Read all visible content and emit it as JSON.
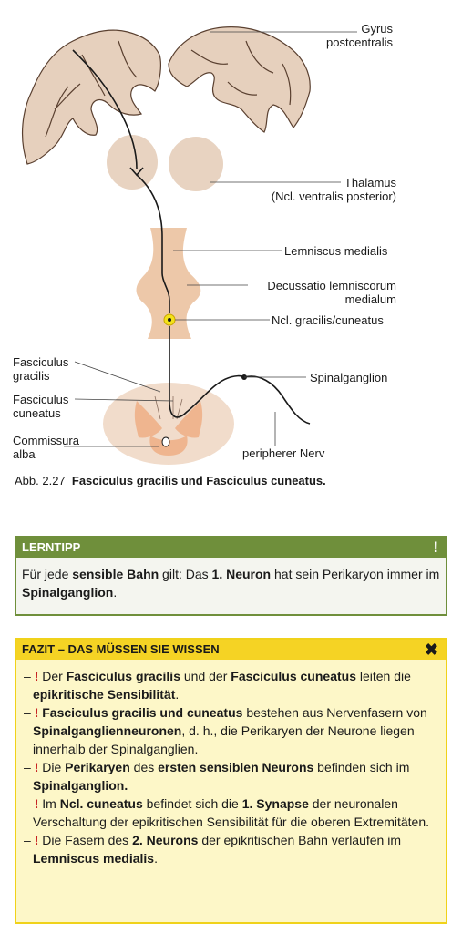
{
  "figure": {
    "labels": {
      "gyrus": "Gyrus\npostcentralis",
      "thalamus": "Thalamus\n(Ncl. ventralis posterior)",
      "lemniscus": "Lemniscus medialis",
      "decussatio": "Decussatio lemniscorum\nmedialum",
      "ncl": "Ncl. gracilis/cuneatus",
      "fasc_gracilis": "Fasciculus\ngracilis",
      "fasc_cuneatus": "Fasciculus\ncuneatus",
      "commissura": "Commissura\nalba",
      "spinalganglion": "Spinalganglion",
      "peripherer": "peripherer Nerv"
    },
    "colors": {
      "tissue": "#e8d3c1",
      "tissue_dark": "#d9b89e",
      "grey_matter": "#f3c9a8",
      "nucleus": "#f3e21b",
      "stroke": "#1a1a1a"
    }
  },
  "caption": {
    "number": "Abb. 2.27",
    "text": "Fasciculus gracilis und Fasciculus cuneatus."
  },
  "lerntipp": {
    "title": "LERNTIPP",
    "icon": "!",
    "segments": [
      {
        "t": "Für jede ",
        "b": false
      },
      {
        "t": "sensible Bahn",
        "b": true
      },
      {
        "t": " gilt: Das ",
        "b": false
      },
      {
        "t": "1. Neuron",
        "b": true
      },
      {
        "t": " hat sein Perikaryon immer im ",
        "b": false
      },
      {
        "t": "Spinalganglion",
        "b": true
      },
      {
        "t": ".",
        "b": false
      }
    ]
  },
  "fazit": {
    "title": "FAZIT – DAS MÜSSEN SIE WISSEN",
    "icon": "✖",
    "items": [
      [
        {
          "t": "Der ",
          "b": false
        },
        {
          "t": "Fasciculus gracilis",
          "b": true
        },
        {
          "t": " und der ",
          "b": false
        },
        {
          "t": "Fasciculus cuneatus",
          "b": true
        },
        {
          "t": " leiten die ",
          "b": false
        },
        {
          "t": "epikritische Sensibilität",
          "b": true
        },
        {
          "t": ".",
          "b": false
        }
      ],
      [
        {
          "t": "Fasciculus gracilis und cuneatus",
          "b": true
        },
        {
          "t": " bestehen aus Nervenfasern von ",
          "b": false
        },
        {
          "t": "Spinalganglienneuronen",
          "b": true
        },
        {
          "t": ", d. h., die Perikaryen der Neurone liegen innerhalb der Spinalganglien.",
          "b": false
        }
      ],
      [
        {
          "t": "Die ",
          "b": false
        },
        {
          "t": "Perikaryen",
          "b": true
        },
        {
          "t": " des ",
          "b": false
        },
        {
          "t": "ersten sensiblen Neurons",
          "b": true
        },
        {
          "t": " befinden sich im ",
          "b": false
        },
        {
          "t": "Spinalganglion.",
          "b": true
        }
      ],
      [
        {
          "t": "Im ",
          "b": false
        },
        {
          "t": "Ncl. cuneatus",
          "b": true
        },
        {
          "t": " befindet sich die ",
          "b": false
        },
        {
          "t": "1. Synapse",
          "b": true
        },
        {
          "t": " der neuronalen Verschaltung der epikritischen Sensibilität für die oberen Extremitäten.",
          "b": false
        }
      ],
      [
        {
          "t": "Die Fasern des ",
          "b": false
        },
        {
          "t": "2. Neurons",
          "b": true
        },
        {
          "t": " der epikritischen Bahn verlaufen im ",
          "b": false
        },
        {
          "t": "Lemniscus medialis",
          "b": true
        },
        {
          "t": ".",
          "b": false
        }
      ]
    ],
    "dash": "–",
    "bang": "!"
  }
}
